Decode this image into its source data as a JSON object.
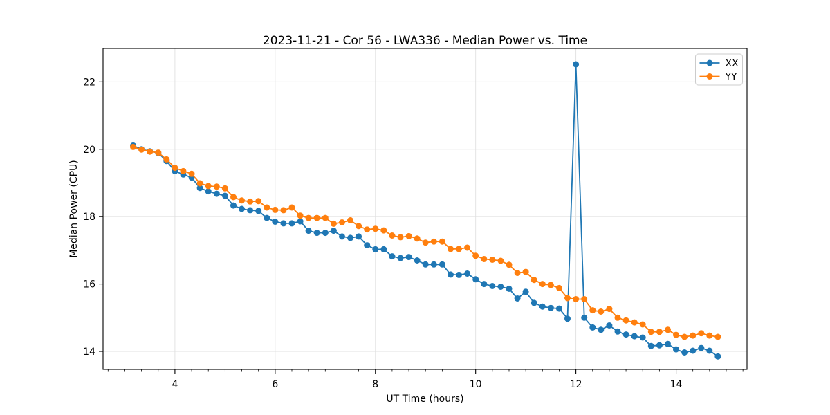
{
  "figure": {
    "title": "2023-11-21 - Cor 56 - LWA336 - Median Power vs. Time",
    "xlabel": "UT Time (hours)",
    "ylabel": "Median Power (CPU)",
    "background_color": "#ffffff",
    "spine_color": "#000000",
    "grid_color": "#e0e0e0",
    "tick_color": "#000000",
    "legend_border_color": "#cccccc",
    "legend_background": "#ffffff"
  },
  "chart_data": {
    "type": "line",
    "title": "2023-11-21 - Cor 56 - LWA336 - Median Power vs. Time",
    "xlabel": "UT Time (hours)",
    "ylabel": "Median Power (CPU)",
    "grid": true,
    "legend_position": "upper right",
    "legend_entries": [
      "XX",
      "YY"
    ],
    "xlim": [
      2.566,
      15.414
    ],
    "ylim": [
      13.466,
      22.993
    ],
    "x_ticks": [
      4,
      6,
      8,
      10,
      12,
      14
    ],
    "x_minor_step": 0.33333,
    "y_ticks": [
      14,
      16,
      18,
      20,
      22
    ],
    "marker": "circle",
    "x": [
      3.1667,
      3.3333,
      3.5,
      3.6667,
      3.8333,
      4.0,
      4.1667,
      4.3333,
      4.5,
      4.6667,
      4.8333,
      5.0,
      5.1667,
      5.3333,
      5.5,
      5.6667,
      5.8333,
      6.0,
      6.1667,
      6.3333,
      6.5,
      6.6667,
      6.8333,
      7.0,
      7.1667,
      7.3333,
      7.5,
      7.6667,
      7.8333,
      8.0,
      8.1667,
      8.3333,
      8.5,
      8.6667,
      8.8333,
      9.0,
      9.1667,
      9.3333,
      9.5,
      9.6667,
      9.8333,
      10.0,
      10.1667,
      10.3333,
      10.5,
      10.6667,
      10.8333,
      11.0,
      11.1667,
      11.3333,
      11.5,
      11.6667,
      11.8333,
      12.0,
      12.1667,
      12.3333,
      12.5,
      12.6667,
      12.8333,
      13.0,
      13.1667,
      13.3333,
      13.5,
      13.6667,
      13.8333,
      14.0,
      14.1667,
      14.3333,
      14.5,
      14.6667,
      14.8333
    ],
    "series": [
      {
        "name": "XX",
        "color": "#1f77b4",
        "values": [
          20.11,
          20.0,
          19.94,
          19.89,
          19.65,
          19.35,
          19.25,
          19.16,
          18.85,
          18.75,
          18.68,
          18.62,
          18.33,
          18.23,
          18.19,
          18.17,
          17.96,
          17.85,
          17.8,
          17.8,
          17.86,
          17.58,
          17.52,
          17.52,
          17.58,
          17.41,
          17.37,
          17.41,
          17.15,
          17.03,
          17.03,
          16.82,
          16.77,
          16.8,
          16.7,
          16.58,
          16.58,
          16.58,
          16.28,
          16.27,
          16.31,
          16.14,
          16.0,
          15.94,
          15.92,
          15.86,
          15.57,
          15.77,
          15.44,
          15.33,
          15.29,
          15.27,
          14.97,
          22.52,
          15.0,
          14.71,
          14.64,
          14.77,
          14.59,
          14.5,
          14.45,
          14.41,
          14.16,
          14.18,
          14.22,
          14.06,
          13.97,
          14.02,
          14.1,
          14.02,
          13.85
        ]
      },
      {
        "name": "YY",
        "color": "#ff7f0e",
        "values": [
          20.07,
          19.99,
          19.93,
          19.9,
          19.7,
          19.45,
          19.35,
          19.27,
          18.99,
          18.91,
          18.89,
          18.84,
          18.58,
          18.48,
          18.45,
          18.46,
          18.27,
          18.2,
          18.19,
          18.27,
          18.03,
          17.96,
          17.96,
          17.96,
          17.79,
          17.83,
          17.89,
          17.72,
          17.62,
          17.64,
          17.59,
          17.44,
          17.39,
          17.42,
          17.35,
          17.23,
          17.26,
          17.26,
          17.04,
          17.04,
          17.08,
          16.84,
          16.74,
          16.72,
          16.69,
          16.57,
          16.33,
          16.36,
          16.12,
          16.0,
          15.97,
          15.88,
          15.58,
          15.55,
          15.55,
          15.22,
          15.18,
          15.26,
          15.0,
          14.92,
          14.86,
          14.8,
          14.58,
          14.58,
          14.64,
          14.49,
          14.43,
          14.47,
          14.54,
          14.47,
          14.43
        ]
      }
    ]
  }
}
